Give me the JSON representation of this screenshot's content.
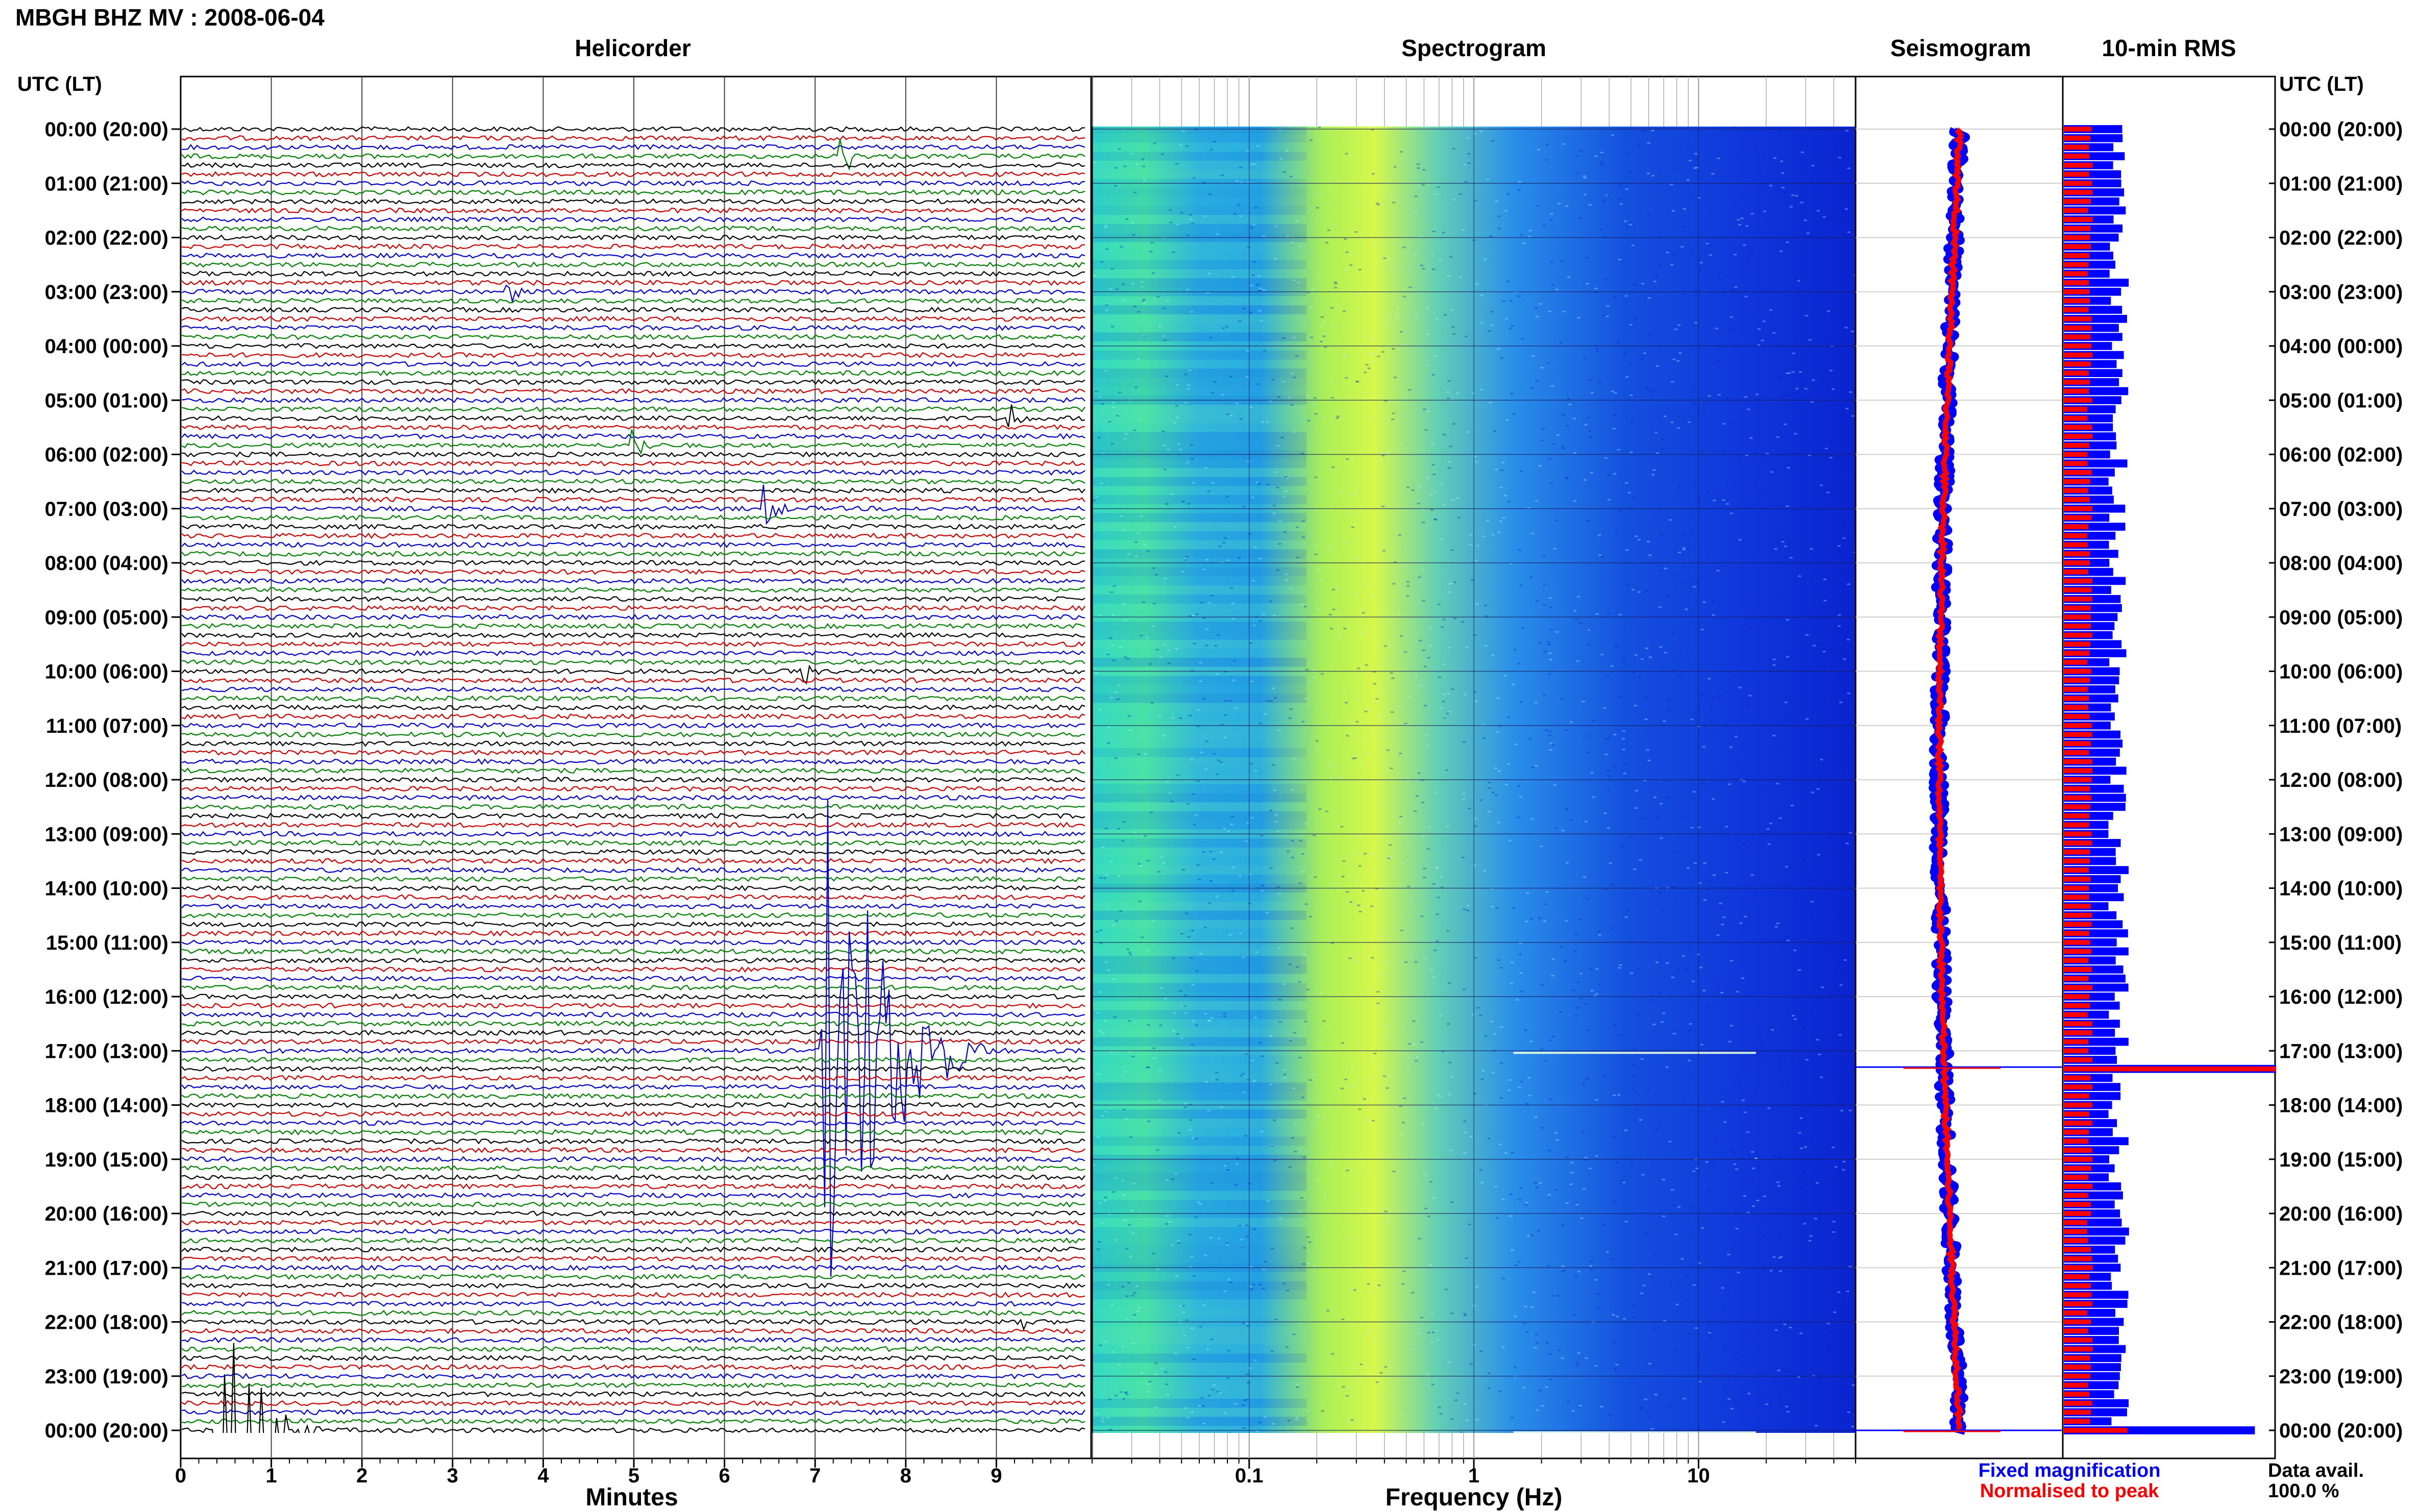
{
  "header": {
    "station_title": "MBGH BHZ MV : 2008-06-04",
    "utc_label_left": "UTC (LT)",
    "utc_label_right": "UTC (LT)"
  },
  "panels": {
    "helicorder": "Helicorder",
    "spectrogram": "Spectrogram",
    "seismogram": "Seismogram",
    "rms": "10-min RMS"
  },
  "footer": {
    "minutes_label": "Minutes",
    "frequency_label": "Frequency (Hz)",
    "legend_fixed": "Fixed magnification",
    "legend_normalised": "Normalised to peak",
    "data_avail_label": "Data avail.",
    "data_avail_value": "100.0 %"
  },
  "colors": {
    "helicorder_traces": [
      "#000000",
      "#cc0000",
      "#0000cc",
      "#008000"
    ],
    "fixed_magnification": "#0000ff",
    "normalised_to_peak": "#ff0000",
    "spectrogram_low": "#0022dd",
    "spectrogram_high": "#e6ff40"
  },
  "chart_data": [
    {
      "type": "line",
      "panel": "Helicorder",
      "xlabel": "Minutes",
      "x_ticks": [
        "0",
        "1",
        "2",
        "3",
        "4",
        "5",
        "6",
        "7",
        "8",
        "9"
      ],
      "xlim": [
        0,
        10
      ],
      "hour_labels": [
        "00:00 (20:00)",
        "01:00 (21:00)",
        "02:00 (22:00)",
        "03:00 (23:00)",
        "04:00 (00:00)",
        "05:00 (01:00)",
        "06:00 (02:00)",
        "07:00 (03:00)",
        "08:00 (04:00)",
        "09:00 (05:00)",
        "10:00 (06:00)",
        "11:00 (07:00)",
        "12:00 (08:00)",
        "13:00 (09:00)",
        "14:00 (10:00)",
        "15:00 (11:00)",
        "16:00 (12:00)",
        "17:00 (13:00)",
        "18:00 (14:00)",
        "19:00 (15:00)",
        "20:00 (16:00)",
        "21:00 (17:00)",
        "22:00 (18:00)",
        "23:00 (19:00)",
        "00:00 (20:00)"
      ],
      "rows_per_hour": 6,
      "trace_count": 145,
      "events": [
        {
          "row": 102,
          "minute_start": 7.05,
          "minute_end": 9.2,
          "amplitude": 0.9
        },
        {
          "row": 144,
          "minute_start": 0.35,
          "minute_end": 1.7,
          "amplitude": 0.45
        },
        {
          "row": 3,
          "minute_start": 7.25,
          "minute_end": 7.6,
          "amplitude": 0.1
        },
        {
          "row": 18,
          "minute_start": 3.55,
          "minute_end": 3.85,
          "amplitude": 0.07
        },
        {
          "row": 32,
          "minute_start": 9.1,
          "minute_end": 9.4,
          "amplitude": 0.1
        },
        {
          "row": 35,
          "minute_start": 4.95,
          "minute_end": 5.3,
          "amplitude": 0.08
        },
        {
          "row": 42,
          "minute_start": 6.4,
          "minute_end": 6.8,
          "amplitude": 0.09
        },
        {
          "row": 60,
          "minute_start": 6.8,
          "minute_end": 7.1,
          "amplitude": 0.09
        },
        {
          "row": 132,
          "minute_start": 9.3,
          "minute_end": 9.45,
          "amplitude": 0.08
        }
      ]
    },
    {
      "type": "heatmap",
      "panel": "Spectrogram",
      "xlabel": "Frequency (Hz)",
      "x_scale": "log",
      "x_ticks": [
        "0.1",
        "1",
        "10"
      ],
      "xlim": [
        0.02,
        50
      ],
      "peak_frequency_hz": 0.4,
      "colormap": "blue-cyan-yellow"
    },
    {
      "type": "line",
      "panel": "Seismogram",
      "series": [
        {
          "name": "Fixed magnification"
        },
        {
          "name": "Normalised to peak"
        }
      ],
      "spikes_hour": [
        17.3,
        24.0
      ]
    },
    {
      "type": "bar",
      "panel": "10-min RMS",
      "series": [
        {
          "name": "Fixed magnification",
          "relative_level": 0.28
        },
        {
          "name": "Normalised to peak",
          "relative_level": 0.13
        }
      ],
      "peak_rows": [
        104,
        144
      ]
    }
  ]
}
